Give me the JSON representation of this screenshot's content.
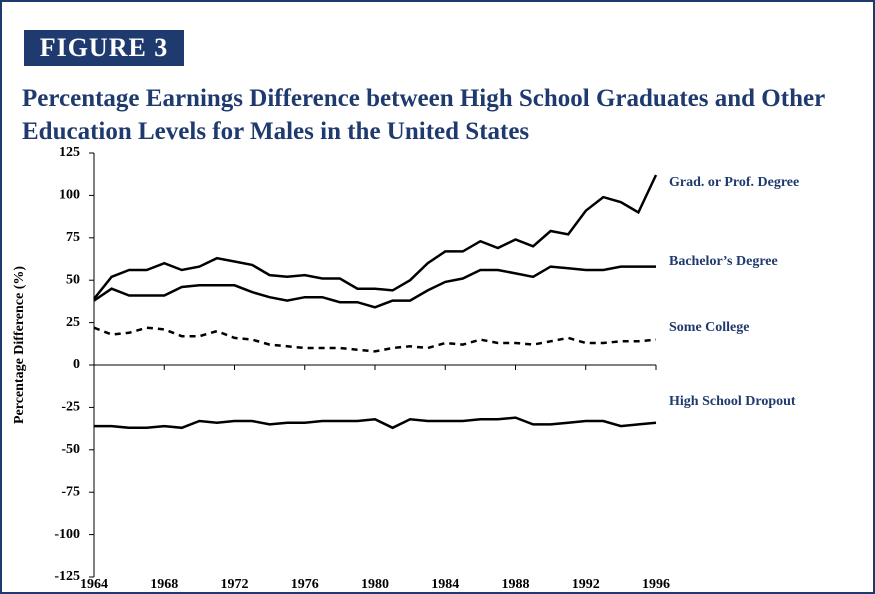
{
  "figure_label": "FIGURE 3",
  "chart_data": {
    "type": "line",
    "title": "Percentage Earnings Difference between High School Graduates and Other Education Levels for Males in the United States",
    "y_label": "Percentage Difference (%)",
    "x": [
      1964,
      1965,
      1966,
      1967,
      1968,
      1969,
      1970,
      1971,
      1972,
      1973,
      1974,
      1975,
      1976,
      1977,
      1978,
      1979,
      1980,
      1981,
      1982,
      1983,
      1984,
      1985,
      1986,
      1987,
      1988,
      1989,
      1990,
      1991,
      1992,
      1993,
      1994,
      1995,
      1996
    ],
    "xlim": [
      1964,
      1996
    ],
    "xticks": [
      1964,
      1968,
      1972,
      1976,
      1980,
      1984,
      1988,
      1992,
      1996
    ],
    "ylim": [
      -125,
      125
    ],
    "yticks": [
      125,
      100,
      75,
      50,
      25,
      0,
      -25,
      -50,
      -75,
      -100,
      -125
    ],
    "series": [
      {
        "name": "Grad. or Prof. Degree",
        "color": "#000000",
        "style": "solid",
        "values": [
          39,
          52,
          56,
          56,
          60,
          56,
          58,
          63,
          61,
          59,
          53,
          52,
          53,
          51,
          51,
          45,
          45,
          44,
          50,
          60,
          67,
          67,
          73,
          69,
          74,
          70,
          79,
          77,
          91,
          99,
          96,
          90,
          112
        ]
      },
      {
        "name": "Bachelor’s Degree",
        "color": "#000000",
        "style": "solid",
        "values": [
          38,
          45,
          41,
          41,
          41,
          46,
          47,
          47,
          47,
          43,
          40,
          38,
          40,
          40,
          37,
          37,
          34,
          38,
          38,
          44,
          49,
          51,
          56,
          56,
          54,
          52,
          58,
          57,
          56,
          56,
          58,
          58,
          58
        ]
      },
      {
        "name": "Some College",
        "color": "#000000",
        "style": "dashed",
        "values": [
          22,
          18,
          19,
          22,
          21,
          17,
          17,
          20,
          16,
          15,
          12,
          11,
          10,
          10,
          10,
          9,
          8,
          10,
          11,
          10,
          13,
          12,
          15,
          13,
          13,
          12,
          14,
          16,
          13,
          13,
          14,
          14,
          15
        ]
      },
      {
        "name": "High School Dropout",
        "color": "#000000",
        "style": "solid",
        "values": [
          -36,
          -36,
          -37,
          -37,
          -36,
          -37,
          -33,
          -34,
          -33,
          -33,
          -35,
          -34,
          -34,
          -33,
          -33,
          -33,
          -32,
          -37,
          -32,
          -33,
          -33,
          -33,
          -32,
          -32,
          -31,
          -35,
          -35,
          -34,
          -33,
          -33,
          -36,
          -35,
          -34
        ]
      }
    ]
  }
}
